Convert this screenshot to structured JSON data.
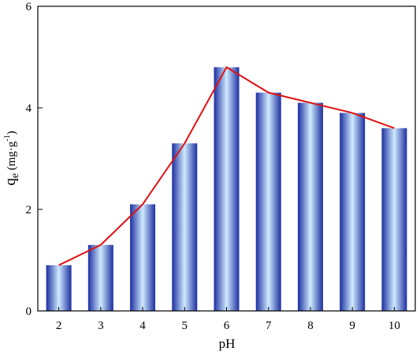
{
  "chart_data": {
    "type": "bar",
    "categories": [
      "2",
      "3",
      "4",
      "5",
      "6",
      "7",
      "8",
      "9",
      "10"
    ],
    "values": [
      0.9,
      1.3,
      2.1,
      3.3,
      4.8,
      4.3,
      4.1,
      3.9,
      3.6
    ],
    "series": [
      {
        "values": [
          0.9,
          1.3,
          2.1,
          3.3,
          4.8,
          4.3,
          4.1,
          3.9,
          3.6
        ],
        "render": "bar"
      },
      {
        "values": [
          0.9,
          1.3,
          2.1,
          3.3,
          4.8,
          4.3,
          4.1,
          3.9,
          3.6
        ],
        "render": "line",
        "color": "#e01010"
      }
    ],
    "xlabel": "pH",
    "ylabel": {
      "q": "q",
      "sub": "e",
      "unit_open": " (mg·g",
      "sup": "-1",
      "unit_close": ")"
    },
    "ylim": [
      0,
      6
    ],
    "yticks": [
      "0",
      "2",
      "4",
      "6"
    ],
    "grid": false,
    "colors": {
      "bar_edge": "#1c2fa0",
      "bar_center": "#cfeaff",
      "line": "#e01010"
    }
  }
}
